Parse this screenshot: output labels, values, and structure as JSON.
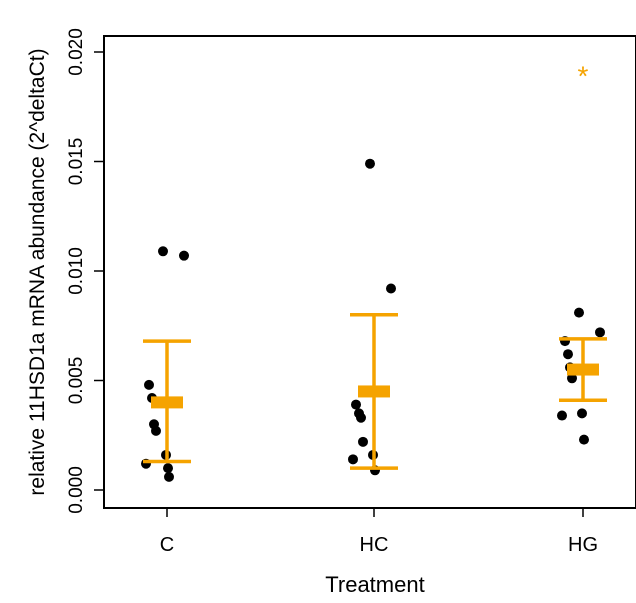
{
  "chart_data": {
    "type": "scatter",
    "title": "",
    "xlabel": "Treatment",
    "ylabel": "relative 11HSD1a mRNA abundance (2^deltaCt)",
    "categories": [
      "C",
      "HC",
      "HG"
    ],
    "ylim": [
      0,
      0.02
    ],
    "yticks": [
      "0.000",
      "0.005",
      "0.010",
      "0.015",
      "0.020"
    ],
    "grid": false,
    "points": [
      {
        "category": "C",
        "values": [
          0.0109,
          0.0107,
          0.0048,
          0.0042,
          0.003,
          0.0027,
          0.0016,
          0.0012,
          0.001,
          0.0006
        ]
      },
      {
        "category": "HC",
        "values": [
          0.0149,
          0.0092,
          0.0039,
          0.0035,
          0.0033,
          0.0022,
          0.0016,
          0.0014,
          0.0009
        ]
      },
      {
        "category": "HG",
        "values": [
          0.0081,
          0.0072,
          0.0068,
          0.0062,
          0.0056,
          0.0051,
          0.0035,
          0.0034,
          0.0023
        ]
      }
    ],
    "summary": [
      {
        "category": "C",
        "mean": 0.004,
        "lower": 0.0013,
        "upper": 0.0068
      },
      {
        "category": "HC",
        "mean": 0.0045,
        "lower": 0.001,
        "upper": 0.008
      },
      {
        "category": "HG",
        "mean": 0.0055,
        "lower": 0.0041,
        "upper": 0.0069
      }
    ],
    "annotations": [
      {
        "category": "HG",
        "text": "*",
        "y": 0.0191
      }
    ],
    "colors": {
      "points": "#000000",
      "summary": "#f5a300",
      "annotation": "#f5a300",
      "axis": "#000000"
    }
  }
}
